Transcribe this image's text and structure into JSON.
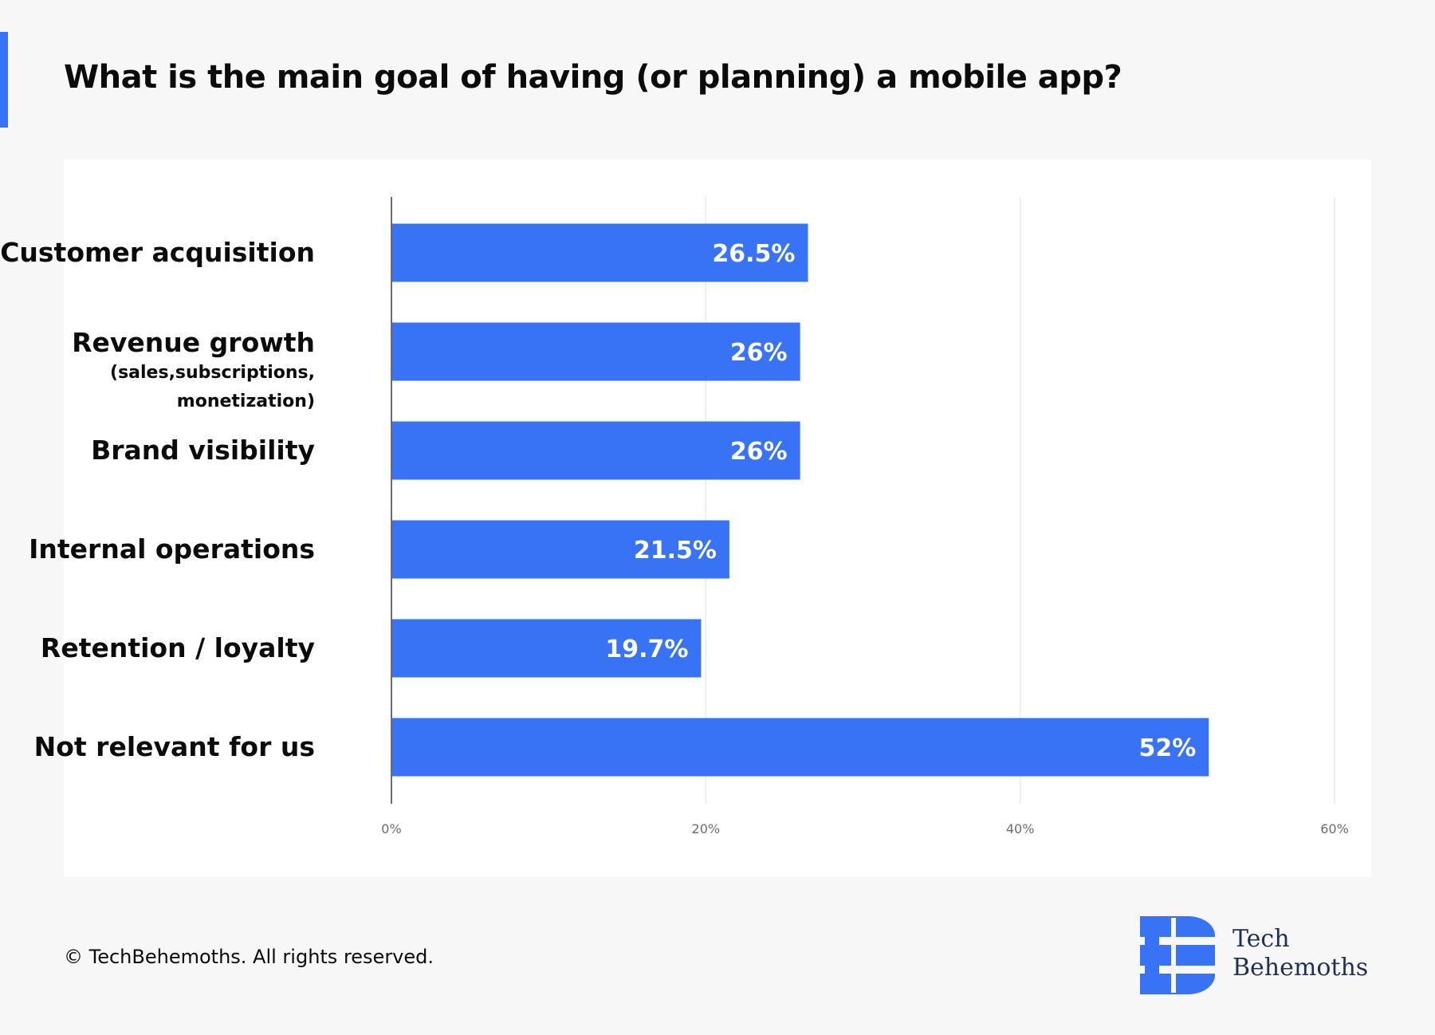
{
  "title": "What is the main goal of having (or planning) a mobile app?",
  "footer": {
    "copyright": "© TechBehemoths. All rights reserved."
  },
  "brand": {
    "line1": "Tech",
    "line2": "Behemoths",
    "icon": "techbehemoths-logo-icon"
  },
  "colors": {
    "bar": "#3873f6",
    "accent": "#3873f6",
    "background": "#f7f7f7",
    "panel": "#ffffff",
    "grid": "#ebebeb",
    "axis": "#6b6b6b"
  },
  "chart_data": {
    "type": "bar",
    "orientation": "horizontal",
    "title": "What is the main goal of having (or planning) a mobile app?",
    "categories": [
      {
        "label": "Customer acquisition",
        "sub": []
      },
      {
        "label": "Revenue growth",
        "sub": [
          "(sales,subscriptions,",
          "monetization)"
        ]
      },
      {
        "label": "Brand visibility",
        "sub": []
      },
      {
        "label": "Internal operations",
        "sub": []
      },
      {
        "label": "Retention / loyalty",
        "sub": []
      },
      {
        "label": "Not relevant for us",
        "sub": []
      }
    ],
    "values": [
      26.5,
      26,
      26,
      21.5,
      19.7,
      52
    ],
    "data_labels": [
      "26.5%",
      "26%",
      "26%",
      "21.5%",
      "19.7%",
      "52%"
    ],
    "xlim": [
      0,
      60
    ],
    "x_ticks": [
      0,
      20,
      40,
      60
    ],
    "x_tick_labels": [
      "0%",
      "20%",
      "40%",
      "60%"
    ],
    "xlabel": "",
    "ylabel": "",
    "grid": true,
    "legend": "none"
  }
}
